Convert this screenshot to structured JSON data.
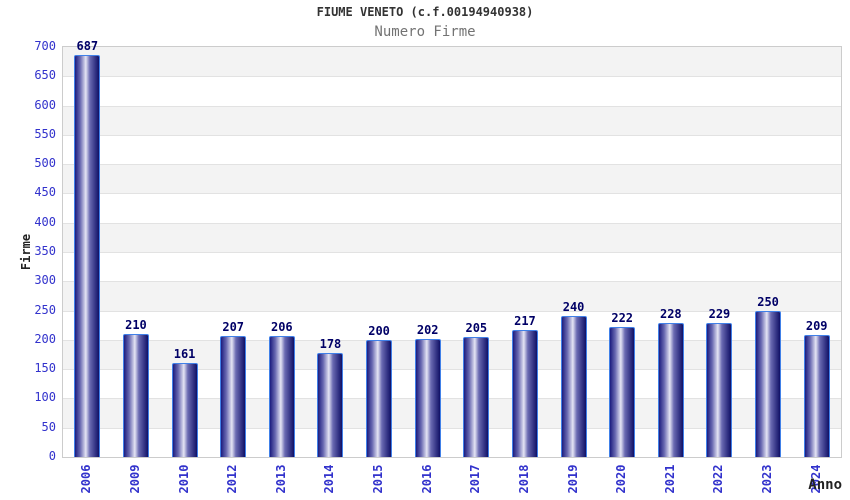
{
  "chart_data": {
    "type": "bar",
    "title": "FIUME VENETO (c.f.00194940938)",
    "subtitle": "Numero Firme",
    "xlabel": "Anno",
    "ylabel": "Firme",
    "categories": [
      "2006",
      "2009",
      "2010",
      "2012",
      "2013",
      "2014",
      "2015",
      "2016",
      "2017",
      "2018",
      "2019",
      "2020",
      "2021",
      "2022",
      "2023",
      "2024"
    ],
    "values": [
      687,
      210,
      161,
      207,
      206,
      178,
      200,
      202,
      205,
      217,
      240,
      222,
      228,
      229,
      250,
      209
    ],
    "ylim": [
      0,
      700
    ],
    "ytick_step": 50,
    "legend": "none",
    "grid": true,
    "colors": {
      "title": "#333333",
      "subtitle": "#737373",
      "tick_label": "#3232cc",
      "value_label": "#000066",
      "bar_border": "#4080e8",
      "bar_dark": "#1c1c7e",
      "bar_mid": "#6a6ab2",
      "bar_light": "#e4e4f4",
      "band_gray": "#f3f3f3",
      "band_white": "#ffffff",
      "gridline": "#e2e2e2",
      "plot_border": "#cccccc"
    }
  }
}
